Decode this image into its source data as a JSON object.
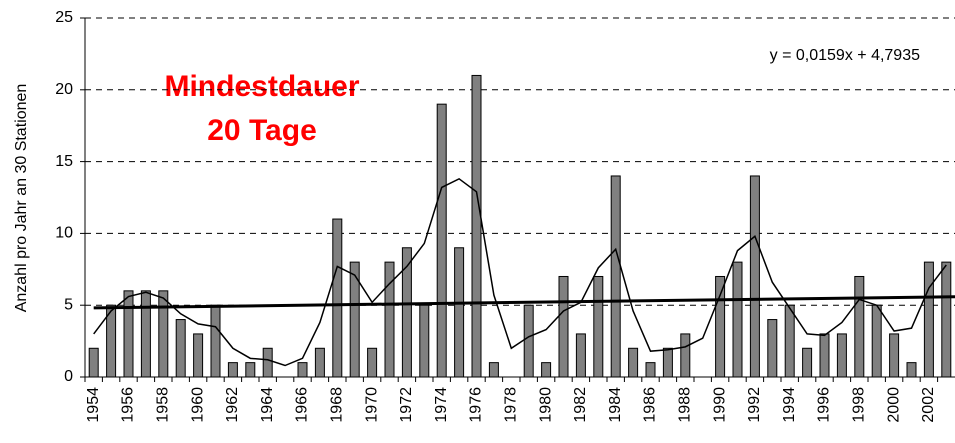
{
  "chart_data": {
    "type": "bar",
    "title": [
      "Mindestdauer",
      "20 Tage"
    ],
    "annotation": "y = 0,0159x + 4,7935",
    "y_label": "Anzahl pro Jahr an 30 Stationen",
    "categories": [
      "1954",
      null,
      "1956",
      null,
      "1958",
      null,
      "1960",
      null,
      "1962",
      null,
      "1964",
      null,
      "1966",
      null,
      "1968",
      null,
      "1970",
      null,
      "1972",
      null,
      "1974",
      null,
      "1976",
      null,
      "1978",
      null,
      "1980",
      null,
      "1982",
      null,
      "1984",
      null,
      "1986",
      null,
      "1988",
      null,
      "1990",
      null,
      "1992",
      null,
      "1994",
      null,
      "1996",
      null,
      "1998",
      null,
      "2000",
      null,
      "2002",
      null
    ],
    "series": [
      {
        "color": "#808080",
        "values": [
          2,
          5,
          6,
          6,
          6,
          4,
          3,
          5,
          1,
          1,
          2,
          0,
          1,
          2,
          11,
          8,
          2,
          8,
          9,
          5,
          19,
          9,
          21,
          1,
          0,
          5,
          1,
          7,
          3,
          7,
          14,
          2,
          1,
          2,
          3,
          0,
          7,
          8,
          14,
          4,
          5,
          2,
          3,
          3,
          7,
          5,
          3,
          1,
          8,
          8
        ]
      },
      {
        "type": "line",
        "color": "#000000",
        "values": [
          3.0,
          4.6,
          5.6,
          5.9,
          5.5,
          4.4,
          3.7,
          3.5,
          2.0,
          1.3,
          1.2,
          0.8,
          1.3,
          3.8,
          7.7,
          7.1,
          5.2,
          6.5,
          7.7,
          9.3,
          13.2,
          13.8,
          12.9,
          5.7,
          2.0,
          2.8,
          3.3,
          4.6,
          5.2,
          7.6,
          8.9,
          4.6,
          1.8,
          1.9,
          2.1,
          2.7,
          5.7,
          8.8,
          9.8,
          6.6,
          4.8,
          3.0,
          2.9,
          3.8,
          5.4,
          5.0,
          3.2,
          3.4,
          6.2,
          7.8
        ]
      }
    ],
    "trend": {
      "color": "#000000",
      "values": [
        4.81,
        5.59
      ]
    },
    "ylim": [
      0,
      25
    ],
    "yticks": [
      0,
      5,
      10,
      15,
      20,
      25
    ],
    "grid": true
  }
}
